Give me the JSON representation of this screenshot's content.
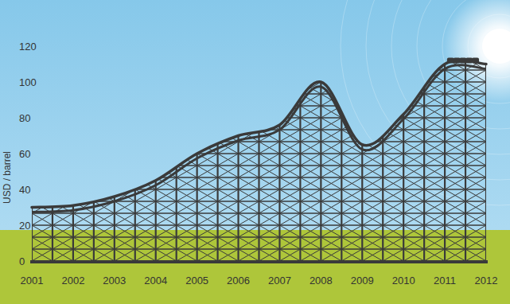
{
  "chart_data": {
    "type": "line",
    "ylabel": "USD / barrel",
    "categories": [
      "2001",
      "2002",
      "2003",
      "2004",
      "2005",
      "2006",
      "2007",
      "2008",
      "2009",
      "2010",
      "2011",
      "2012"
    ],
    "values": [
      30,
      31,
      36,
      45,
      60,
      70,
      76,
      100,
      65,
      82,
      110,
      110
    ],
    "color": "#3a3a3a",
    "ylim": [
      0,
      120
    ],
    "yticks": [
      0,
      20,
      40,
      60,
      80,
      100,
      120
    ],
    "grid": false
  }
}
